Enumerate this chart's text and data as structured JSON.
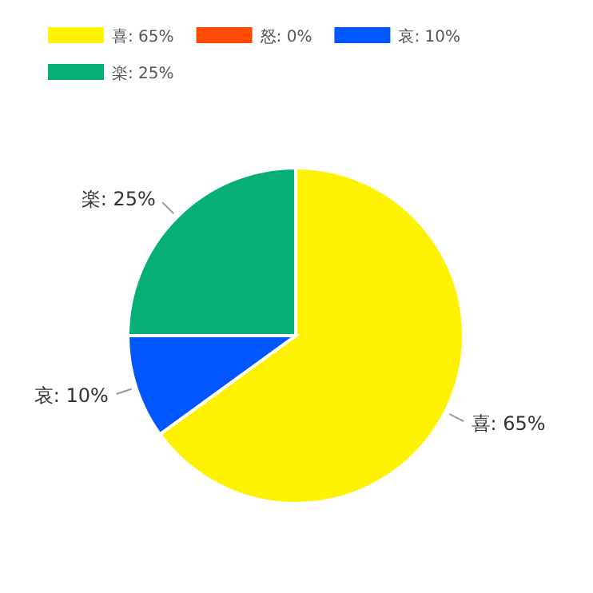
{
  "chart_data": {
    "type": "pie",
    "categories": [
      "喜: 65%",
      "怒: 0%",
      "哀: 10%",
      "楽: 25%"
    ],
    "values": [
      65,
      0,
      10,
      25
    ],
    "colors": [
      "#fff200",
      "#ff4a00",
      "#0057ff",
      "#05af77"
    ],
    "value_labels": [
      "喜: 65%",
      null,
      "哀: 10%",
      "楽: 25%"
    ],
    "legend": "top left"
  }
}
